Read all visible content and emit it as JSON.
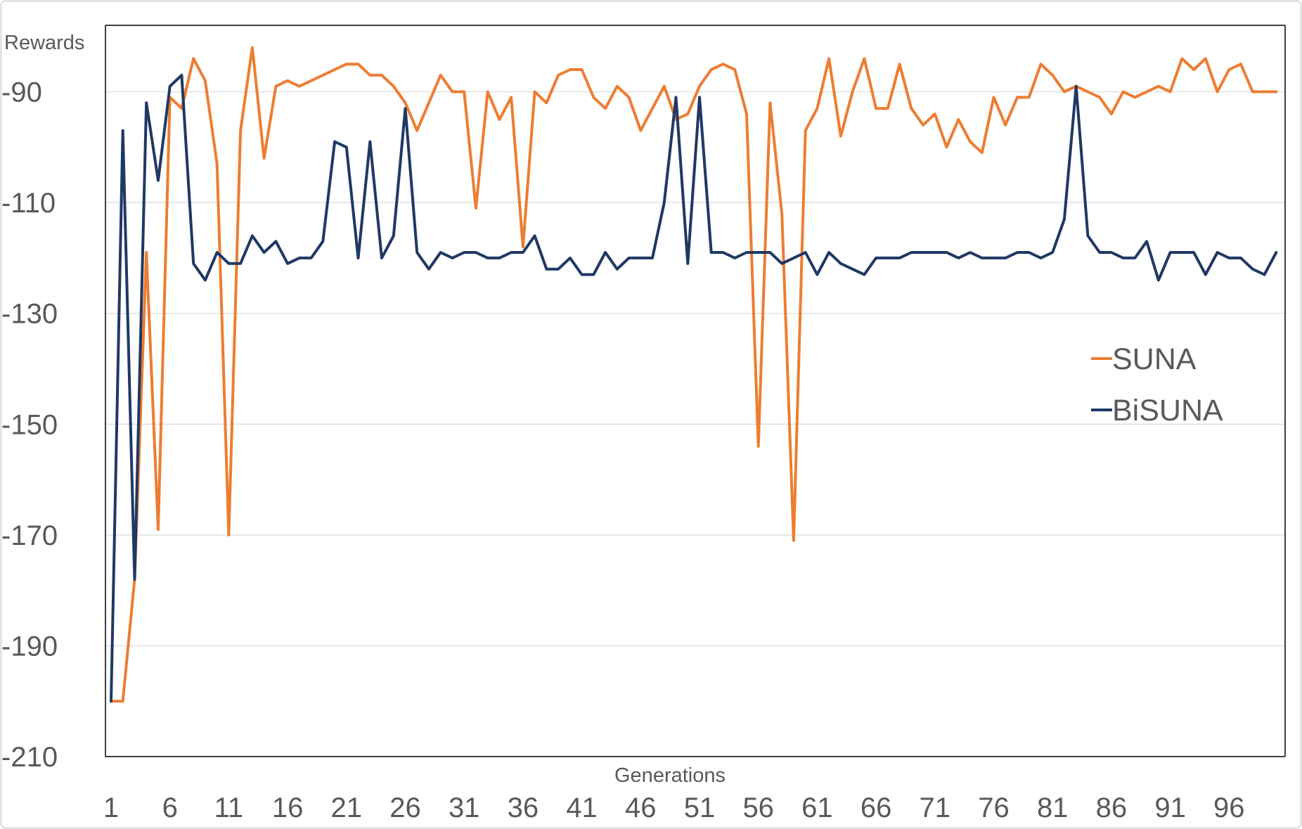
{
  "chart_data": {
    "type": "line",
    "xlabel": "Generations",
    "ylabel": "Rewards",
    "x": [
      1,
      2,
      3,
      4,
      5,
      6,
      7,
      8,
      9,
      10,
      11,
      12,
      13,
      14,
      15,
      16,
      17,
      18,
      19,
      20,
      21,
      22,
      23,
      24,
      25,
      26,
      27,
      28,
      29,
      30,
      31,
      32,
      33,
      34,
      35,
      36,
      37,
      38,
      39,
      40,
      41,
      42,
      43,
      44,
      45,
      46,
      47,
      48,
      49,
      50,
      51,
      52,
      53,
      54,
      55,
      56,
      57,
      58,
      59,
      60,
      61,
      62,
      63,
      64,
      65,
      66,
      67,
      68,
      69,
      70,
      71,
      72,
      73,
      74,
      75,
      76,
      77,
      78,
      79,
      80,
      81,
      82,
      83,
      84,
      85,
      86,
      87,
      88,
      89,
      90,
      91,
      92,
      93,
      94,
      95,
      96,
      97,
      98,
      99,
      100
    ],
    "x_tick_labels": [
      "1",
      "6",
      "11",
      "16",
      "21",
      "26",
      "31",
      "36",
      "41",
      "46",
      "51",
      "56",
      "61",
      "66",
      "71",
      "76",
      "81",
      "86",
      "91",
      "96"
    ],
    "y_ticks": [
      -90,
      -110,
      -130,
      -150,
      -170,
      -190,
      -210
    ],
    "ylim": [
      -210,
      -78
    ],
    "grid": true,
    "legend_position": "right",
    "series": [
      {
        "name": "SUNA",
        "color": "#ED7D31",
        "values": [
          -200,
          -200,
          -178,
          -119,
          -169,
          -91,
          -93,
          -84,
          -88,
          -103,
          -170,
          -97,
          -82,
          -102,
          -89,
          -88,
          -89,
          -88,
          -87,
          -86,
          -85,
          -85,
          -87,
          -87,
          -89,
          -92,
          -97,
          -92,
          -87,
          -90,
          -90,
          -111,
          -90,
          -95,
          -91,
          -118,
          -90,
          -92,
          -87,
          -86,
          -86,
          -91,
          -93,
          -89,
          -91,
          -97,
          -93,
          -89,
          -95,
          -94,
          -89,
          -86,
          -85,
          -86,
          -94,
          -154,
          -92,
          -112,
          -171,
          -97,
          -93,
          -84,
          -98,
          -90,
          -84,
          -93,
          -93,
          -85,
          -93,
          -96,
          -94,
          -100,
          -95,
          -99,
          -101,
          -91,
          -96,
          -91,
          -91,
          -85,
          -87,
          -90,
          -89,
          -90,
          -91,
          -94,
          -90,
          -91,
          -90,
          -89,
          -90,
          -84,
          -86,
          -84,
          -90,
          -86,
          -85,
          -90,
          -90,
          -90
        ]
      },
      {
        "name": "BiSUNA",
        "color": "#203864",
        "values": [
          -200,
          -97,
          -178,
          -92,
          -106,
          -89,
          -87,
          -121,
          -124,
          -119,
          -121,
          -121,
          -116,
          -119,
          -117,
          -121,
          -120,
          -120,
          -117,
          -99,
          -100,
          -120,
          -99,
          -120,
          -116,
          -93,
          -119,
          -122,
          -119,
          -120,
          -119,
          -119,
          -120,
          -120,
          -119,
          -119,
          -116,
          -122,
          -122,
          -120,
          -123,
          -123,
          -119,
          -122,
          -120,
          -120,
          -120,
          -110,
          -91,
          -121,
          -91,
          -119,
          -119,
          -120,
          -119,
          -119,
          -119,
          -121,
          -120,
          -119,
          -123,
          -119,
          -121,
          -122,
          -123,
          -120,
          -120,
          -120,
          -119,
          -119,
          -119,
          -119,
          -120,
          -119,
          -120,
          -120,
          -120,
          -119,
          -119,
          -120,
          -119,
          -113,
          -89,
          -116,
          -119,
          -119,
          -120,
          -120,
          -117,
          -124,
          -119,
          -119,
          -119,
          -123,
          -119,
          -120,
          -120,
          -122,
          -123,
          -119
        ]
      }
    ]
  }
}
